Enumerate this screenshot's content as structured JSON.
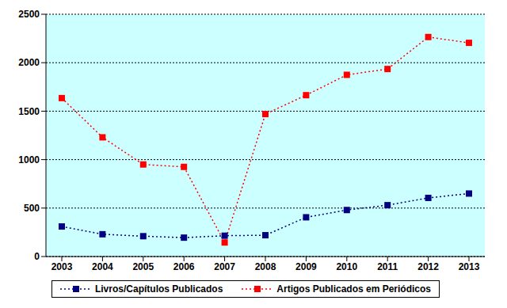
{
  "chart_data": {
    "type": "line",
    "categories": [
      "2003",
      "2004",
      "2005",
      "2006",
      "2007",
      "2008",
      "2009",
      "2010",
      "2011",
      "2012",
      "2013"
    ],
    "series": [
      {
        "name": "Livros/Capítulos Publicados",
        "color": "#000080",
        "marker": "square",
        "line_style": "dotted",
        "values": [
          310,
          230,
          210,
          195,
          215,
          220,
          405,
          480,
          530,
          605,
          650
        ]
      },
      {
        "name": "Artigos Publicados em Periódicos",
        "color": "#ff0000",
        "marker": "square",
        "line_style": "dotted",
        "values": [
          1635,
          1230,
          950,
          925,
          145,
          1470,
          1665,
          1875,
          1935,
          2265,
          2205
        ]
      }
    ],
    "ylim": [
      0,
      2500
    ],
    "yticks": [
      0,
      500,
      1000,
      1500,
      2000,
      2500
    ],
    "grid": true,
    "legend": "bottom"
  }
}
